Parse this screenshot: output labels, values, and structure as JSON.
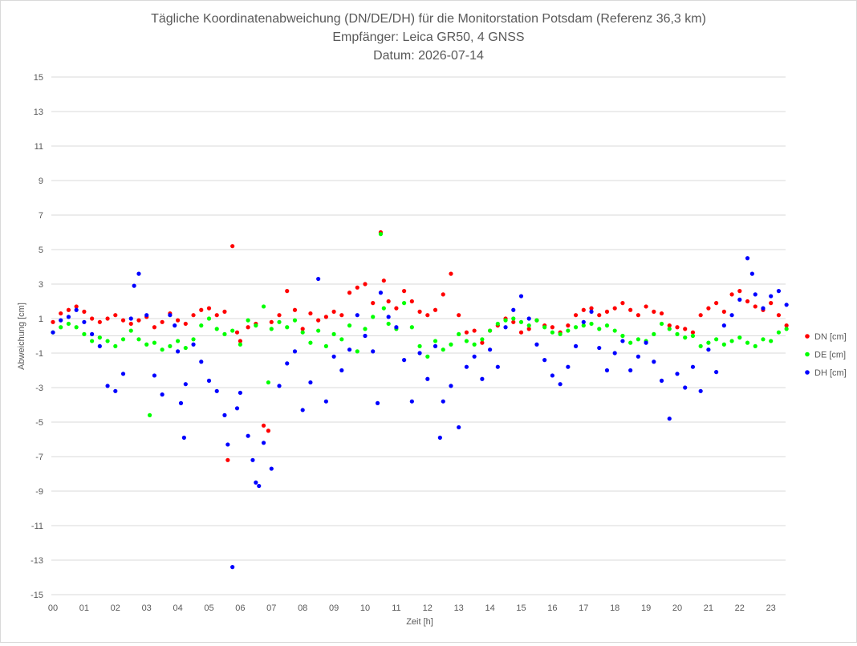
{
  "chart_data": {
    "type": "scatter",
    "title": [
      "Tägliche Koordinatenabweichung (DN/DE/DH) für die Monitorstation Potsdam (Referenz 36,3 km)",
      "Empfänger: Leica GR50, 4 GNSS",
      "Datum: 2026-07-14"
    ],
    "xlabel": "Zeit [h]",
    "ylabel": "Abweichung [cm]",
    "xlim": [
      0,
      24
    ],
    "ylim": [
      -15,
      15
    ],
    "x_tick_labels": [
      "00",
      "01",
      "02",
      "03",
      "04",
      "05",
      "06",
      "07",
      "08",
      "09",
      "10",
      "11",
      "12",
      "13",
      "14",
      "15",
      "16",
      "17",
      "18",
      "19",
      "20",
      "21",
      "22",
      "23"
    ],
    "y_tick_labels": [
      "15",
      "13",
      "11",
      "9",
      "7",
      "5",
      "3",
      "1",
      "-1",
      "-3",
      "-5",
      "-7",
      "-9",
      "-11",
      "-13",
      "-15"
    ],
    "y_tick_values": [
      15,
      13,
      11,
      9,
      7,
      5,
      3,
      1,
      -1,
      -3,
      -5,
      -7,
      -9,
      -11,
      -13,
      -15
    ],
    "grid": "horizontal",
    "legend_position": "right",
    "series": [
      {
        "name": "DN [cm]",
        "color": "#ff0000",
        "points": [
          [
            0.0,
            0.8
          ],
          [
            0.25,
            1.3
          ],
          [
            0.5,
            1.5
          ],
          [
            0.75,
            1.7
          ],
          [
            1.0,
            1.4
          ],
          [
            1.25,
            1.0
          ],
          [
            1.5,
            0.8
          ],
          [
            1.75,
            1.0
          ],
          [
            2.0,
            1.2
          ],
          [
            2.25,
            0.9
          ],
          [
            2.5,
            0.7
          ],
          [
            2.75,
            0.9
          ],
          [
            3.0,
            1.1
          ],
          [
            3.25,
            0.5
          ],
          [
            3.5,
            0.8
          ],
          [
            3.75,
            1.3
          ],
          [
            4.0,
            0.9
          ],
          [
            4.25,
            0.7
          ],
          [
            4.5,
            1.2
          ],
          [
            4.75,
            1.5
          ],
          [
            5.0,
            1.6
          ],
          [
            5.25,
            1.2
          ],
          [
            5.5,
            1.4
          ],
          [
            5.6,
            -7.2
          ],
          [
            5.75,
            5.2
          ],
          [
            5.9,
            0.2
          ],
          [
            6.0,
            -0.3
          ],
          [
            6.25,
            0.5
          ],
          [
            6.5,
            0.7
          ],
          [
            6.75,
            -5.2
          ],
          [
            6.9,
            -5.5
          ],
          [
            7.0,
            0.8
          ],
          [
            7.25,
            1.2
          ],
          [
            7.5,
            2.6
          ],
          [
            7.75,
            1.5
          ],
          [
            8.0,
            0.4
          ],
          [
            8.25,
            1.3
          ],
          [
            8.5,
            0.9
          ],
          [
            8.75,
            1.1
          ],
          [
            9.0,
            1.4
          ],
          [
            9.25,
            1.2
          ],
          [
            9.5,
            2.5
          ],
          [
            9.75,
            2.8
          ],
          [
            10.0,
            3.0
          ],
          [
            10.25,
            1.9
          ],
          [
            10.5,
            6.0
          ],
          [
            10.6,
            3.2
          ],
          [
            10.75,
            2.0
          ],
          [
            11.0,
            1.6
          ],
          [
            11.25,
            2.6
          ],
          [
            11.5,
            2.0
          ],
          [
            11.75,
            1.4
          ],
          [
            12.0,
            1.2
          ],
          [
            12.25,
            1.5
          ],
          [
            12.5,
            2.4
          ],
          [
            12.75,
            3.6
          ],
          [
            13.0,
            1.2
          ],
          [
            13.25,
            0.2
          ],
          [
            13.5,
            0.3
          ],
          [
            13.75,
            -0.4
          ],
          [
            14.0,
            0.3
          ],
          [
            14.25,
            0.6
          ],
          [
            14.5,
            1.0
          ],
          [
            14.75,
            0.8
          ],
          [
            15.0,
            0.2
          ],
          [
            15.25,
            0.4
          ],
          [
            15.5,
            0.9
          ],
          [
            15.75,
            0.6
          ],
          [
            16.0,
            0.5
          ],
          [
            16.25,
            0.2
          ],
          [
            16.5,
            0.6
          ],
          [
            16.75,
            1.2
          ],
          [
            17.0,
            1.5
          ],
          [
            17.25,
            1.6
          ],
          [
            17.5,
            1.2
          ],
          [
            17.75,
            1.4
          ],
          [
            18.0,
            1.6
          ],
          [
            18.25,
            1.9
          ],
          [
            18.5,
            1.5
          ],
          [
            18.75,
            1.2
          ],
          [
            19.0,
            1.7
          ],
          [
            19.25,
            1.4
          ],
          [
            19.5,
            1.3
          ],
          [
            19.75,
            0.6
          ],
          [
            20.0,
            0.5
          ],
          [
            20.25,
            0.4
          ],
          [
            20.5,
            0.2
          ],
          [
            20.75,
            1.2
          ],
          [
            21.0,
            1.6
          ],
          [
            21.25,
            1.9
          ],
          [
            21.5,
            1.4
          ],
          [
            21.75,
            2.4
          ],
          [
            22.0,
            2.6
          ],
          [
            22.25,
            2.0
          ],
          [
            22.5,
            1.7
          ],
          [
            22.75,
            1.5
          ],
          [
            23.0,
            1.9
          ],
          [
            23.25,
            1.2
          ],
          [
            23.5,
            0.6
          ]
        ]
      },
      {
        "name": "DE [cm]",
        "color": "#00ff00",
        "points": [
          [
            0.0,
            0.2
          ],
          [
            0.25,
            0.5
          ],
          [
            0.5,
            0.7
          ],
          [
            0.75,
            0.5
          ],
          [
            1.0,
            0.1
          ],
          [
            1.25,
            -0.3
          ],
          [
            1.5,
            -0.1
          ],
          [
            1.75,
            -0.3
          ],
          [
            2.0,
            -0.6
          ],
          [
            2.25,
            -0.2
          ],
          [
            2.5,
            0.3
          ],
          [
            2.75,
            -0.2
          ],
          [
            3.0,
            -0.5
          ],
          [
            3.1,
            -4.6
          ],
          [
            3.25,
            -0.4
          ],
          [
            3.5,
            -0.8
          ],
          [
            3.75,
            -0.6
          ],
          [
            4.0,
            -0.3
          ],
          [
            4.25,
            -0.7
          ],
          [
            4.5,
            -0.2
          ],
          [
            4.75,
            0.6
          ],
          [
            5.0,
            1.0
          ],
          [
            5.25,
            0.4
          ],
          [
            5.5,
            0.1
          ],
          [
            5.75,
            0.3
          ],
          [
            6.0,
            -0.5
          ],
          [
            6.25,
            0.9
          ],
          [
            6.5,
            0.6
          ],
          [
            6.75,
            1.7
          ],
          [
            6.9,
            -2.7
          ],
          [
            7.0,
            0.4
          ],
          [
            7.25,
            0.8
          ],
          [
            7.5,
            0.5
          ],
          [
            7.75,
            0.9
          ],
          [
            8.0,
            0.2
          ],
          [
            8.25,
            -0.4
          ],
          [
            8.5,
            0.3
          ],
          [
            8.75,
            -0.6
          ],
          [
            9.0,
            0.1
          ],
          [
            9.25,
            -0.2
          ],
          [
            9.5,
            0.6
          ],
          [
            9.75,
            -0.9
          ],
          [
            10.0,
            0.4
          ],
          [
            10.25,
            1.1
          ],
          [
            10.5,
            5.9
          ],
          [
            10.6,
            1.6
          ],
          [
            10.75,
            0.7
          ],
          [
            11.0,
            0.4
          ],
          [
            11.25,
            1.9
          ],
          [
            11.5,
            0.5
          ],
          [
            11.75,
            -0.6
          ],
          [
            12.0,
            -1.2
          ],
          [
            12.25,
            -0.3
          ],
          [
            12.5,
            -0.8
          ],
          [
            12.75,
            -0.5
          ],
          [
            13.0,
            0.1
          ],
          [
            13.25,
            -0.3
          ],
          [
            13.5,
            -0.5
          ],
          [
            13.75,
            -0.2
          ],
          [
            14.0,
            0.3
          ],
          [
            14.25,
            0.7
          ],
          [
            14.5,
            0.9
          ],
          [
            14.75,
            1.0
          ],
          [
            15.0,
            0.8
          ],
          [
            15.25,
            0.6
          ],
          [
            15.5,
            0.9
          ],
          [
            15.75,
            0.5
          ],
          [
            16.0,
            0.2
          ],
          [
            16.25,
            0.1
          ],
          [
            16.5,
            0.3
          ],
          [
            16.75,
            0.5
          ],
          [
            17.0,
            0.6
          ],
          [
            17.25,
            0.7
          ],
          [
            17.5,
            0.4
          ],
          [
            17.75,
            0.6
          ],
          [
            18.0,
            0.3
          ],
          [
            18.25,
            0.0
          ],
          [
            18.5,
            -0.4
          ],
          [
            18.75,
            -0.2
          ],
          [
            19.0,
            -0.3
          ],
          [
            19.25,
            0.1
          ],
          [
            19.5,
            0.7
          ],
          [
            19.75,
            0.4
          ],
          [
            20.0,
            0.1
          ],
          [
            20.25,
            -0.1
          ],
          [
            20.5,
            0.0
          ],
          [
            20.75,
            -0.6
          ],
          [
            21.0,
            -0.4
          ],
          [
            21.25,
            -0.2
          ],
          [
            21.5,
            -0.5
          ],
          [
            21.75,
            -0.3
          ],
          [
            22.0,
            -0.1
          ],
          [
            22.25,
            -0.4
          ],
          [
            22.5,
            -0.6
          ],
          [
            22.75,
            -0.2
          ],
          [
            23.0,
            -0.3
          ],
          [
            23.25,
            0.2
          ],
          [
            23.5,
            0.4
          ]
        ]
      },
      {
        "name": "DH [cm]",
        "color": "#0000ff",
        "points": [
          [
            0.0,
            0.2
          ],
          [
            0.25,
            0.9
          ],
          [
            0.5,
            1.1
          ],
          [
            0.75,
            1.5
          ],
          [
            1.0,
            0.8
          ],
          [
            1.25,
            0.1
          ],
          [
            1.5,
            -0.6
          ],
          [
            1.75,
            -2.9
          ],
          [
            2.0,
            -3.2
          ],
          [
            2.25,
            -2.2
          ],
          [
            2.5,
            1.0
          ],
          [
            2.6,
            2.9
          ],
          [
            2.75,
            3.6
          ],
          [
            3.0,
            1.2
          ],
          [
            3.25,
            -2.3
          ],
          [
            3.5,
            -3.4
          ],
          [
            3.75,
            1.2
          ],
          [
            3.9,
            0.6
          ],
          [
            4.0,
            -0.9
          ],
          [
            4.1,
            -3.9
          ],
          [
            4.2,
            -5.9
          ],
          [
            4.25,
            -2.8
          ],
          [
            4.5,
            -0.5
          ],
          [
            4.75,
            -1.5
          ],
          [
            5.0,
            -2.6
          ],
          [
            5.25,
            -3.2
          ],
          [
            5.5,
            -4.6
          ],
          [
            5.6,
            -6.3
          ],
          [
            5.75,
            -13.4
          ],
          [
            5.9,
            -4.2
          ],
          [
            6.0,
            -3.3
          ],
          [
            6.25,
            -5.8
          ],
          [
            6.4,
            -7.2
          ],
          [
            6.5,
            -8.5
          ],
          [
            6.6,
            -8.7
          ],
          [
            6.75,
            -6.2
          ],
          [
            7.0,
            -7.7
          ],
          [
            7.25,
            -2.9
          ],
          [
            7.5,
            -1.6
          ],
          [
            7.75,
            -0.9
          ],
          [
            8.0,
            -4.3
          ],
          [
            8.25,
            -2.7
          ],
          [
            8.5,
            3.3
          ],
          [
            8.75,
            -3.8
          ],
          [
            9.0,
            -1.2
          ],
          [
            9.25,
            -2.0
          ],
          [
            9.5,
            -0.8
          ],
          [
            9.75,
            1.2
          ],
          [
            10.0,
            0.0
          ],
          [
            10.25,
            -0.9
          ],
          [
            10.4,
            -3.9
          ],
          [
            10.5,
            2.5
          ],
          [
            10.75,
            1.1
          ],
          [
            11.0,
            0.5
          ],
          [
            11.25,
            -1.4
          ],
          [
            11.5,
            -3.8
          ],
          [
            11.75,
            -1.0
          ],
          [
            12.0,
            -2.5
          ],
          [
            12.25,
            -0.6
          ],
          [
            12.4,
            -5.9
          ],
          [
            12.5,
            -3.8
          ],
          [
            12.75,
            -2.9
          ],
          [
            13.0,
            -5.3
          ],
          [
            13.25,
            -1.8
          ],
          [
            13.5,
            -1.2
          ],
          [
            13.75,
            -2.5
          ],
          [
            14.0,
            -0.8
          ],
          [
            14.25,
            -1.8
          ],
          [
            14.5,
            0.5
          ],
          [
            14.75,
            1.5
          ],
          [
            15.0,
            2.3
          ],
          [
            15.25,
            1.0
          ],
          [
            15.5,
            -0.5
          ],
          [
            15.75,
            -1.4
          ],
          [
            16.0,
            -2.3
          ],
          [
            16.25,
            -2.8
          ],
          [
            16.5,
            -1.8
          ],
          [
            16.75,
            -0.6
          ],
          [
            17.0,
            0.8
          ],
          [
            17.25,
            1.4
          ],
          [
            17.5,
            -0.7
          ],
          [
            17.75,
            -2.0
          ],
          [
            18.0,
            -1.0
          ],
          [
            18.25,
            -0.3
          ],
          [
            18.5,
            -2.0
          ],
          [
            18.75,
            -1.2
          ],
          [
            19.0,
            -0.4
          ],
          [
            19.25,
            -1.5
          ],
          [
            19.5,
            -2.6
          ],
          [
            19.75,
            -4.8
          ],
          [
            20.0,
            -2.2
          ],
          [
            20.25,
            -3.0
          ],
          [
            20.5,
            -1.8
          ],
          [
            20.75,
            -3.2
          ],
          [
            21.0,
            -0.8
          ],
          [
            21.25,
            -2.1
          ],
          [
            21.5,
            0.6
          ],
          [
            21.75,
            1.2
          ],
          [
            22.0,
            2.1
          ],
          [
            22.25,
            4.5
          ],
          [
            22.4,
            3.6
          ],
          [
            22.5,
            2.4
          ],
          [
            22.75,
            1.6
          ],
          [
            23.0,
            2.3
          ],
          [
            23.25,
            2.6
          ],
          [
            23.5,
            1.8
          ]
        ]
      }
    ]
  }
}
